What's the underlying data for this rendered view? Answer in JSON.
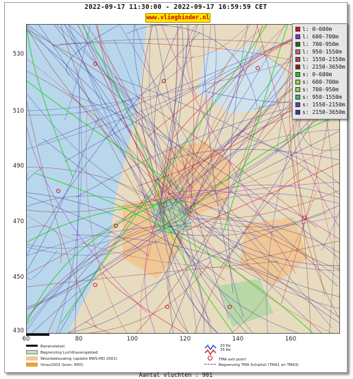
{
  "title": "2022-09-17 11:30:00 - 2022-09-17 16:59:59 CET",
  "site": "www.vlieghinder.nl",
  "axes": {
    "y_ticks": [
      "530",
      "510",
      "490",
      "470",
      "450",
      "430"
    ],
    "x_ticks": [
      "60",
      "80",
      "100",
      "120",
      "140",
      "160"
    ],
    "x_range": [
      60,
      178
    ],
    "y_range": [
      430,
      545
    ]
  },
  "legend": [
    {
      "label": "l: 0-600m",
      "color": "#e01010"
    },
    {
      "label": "l: 600-700m",
      "color": "#b020d0"
    },
    {
      "label": "l: 700-950m",
      "color": "#1a6b1a"
    },
    {
      "label": "l: 950-1550m",
      "color": "#d85a8a"
    },
    {
      "label": "l: 1550-2150m",
      "color": "#c04040"
    },
    {
      "label": "l: 2150-3650m",
      "color": "#8a2020"
    },
    {
      "label": "s: 0-600m",
      "color": "#10d010"
    },
    {
      "label": "s: 600-700m",
      "color": "#90e040"
    },
    {
      "label": "s: 700-950m",
      "color": "#a0d040"
    },
    {
      "label": "s: 950-1550m",
      "color": "#30c070"
    },
    {
      "label": "s: 1550-2150m",
      "color": "#4a4ab0"
    },
    {
      "label": "s: 2150-3650m",
      "color": "#3a3aa0"
    }
  ],
  "key": {
    "runway": "Banenstelsel",
    "airport_boundary": "Begrenzing Luchthavengebied",
    "housing": "Woonbebouwing (update RWS-MD 2001)",
    "vinex": "Vinex2001 (bron: RPD)",
    "ke20": "20 Ke",
    "ke35": "35 Ke",
    "tma_exit": "TMA exit point",
    "tma_boundary": "Begrenzing TMA Schiphol  (TMA1 en TMA3)"
  },
  "footer": "Aantal vluchten : 901",
  "colors": {
    "water": "#b9d7ec",
    "land": "#e8dcc0",
    "urban": "#f0c896",
    "green": "#b8d8a8",
    "arrival_track": "#3a3aa0",
    "departure_track": "#9a2020"
  }
}
